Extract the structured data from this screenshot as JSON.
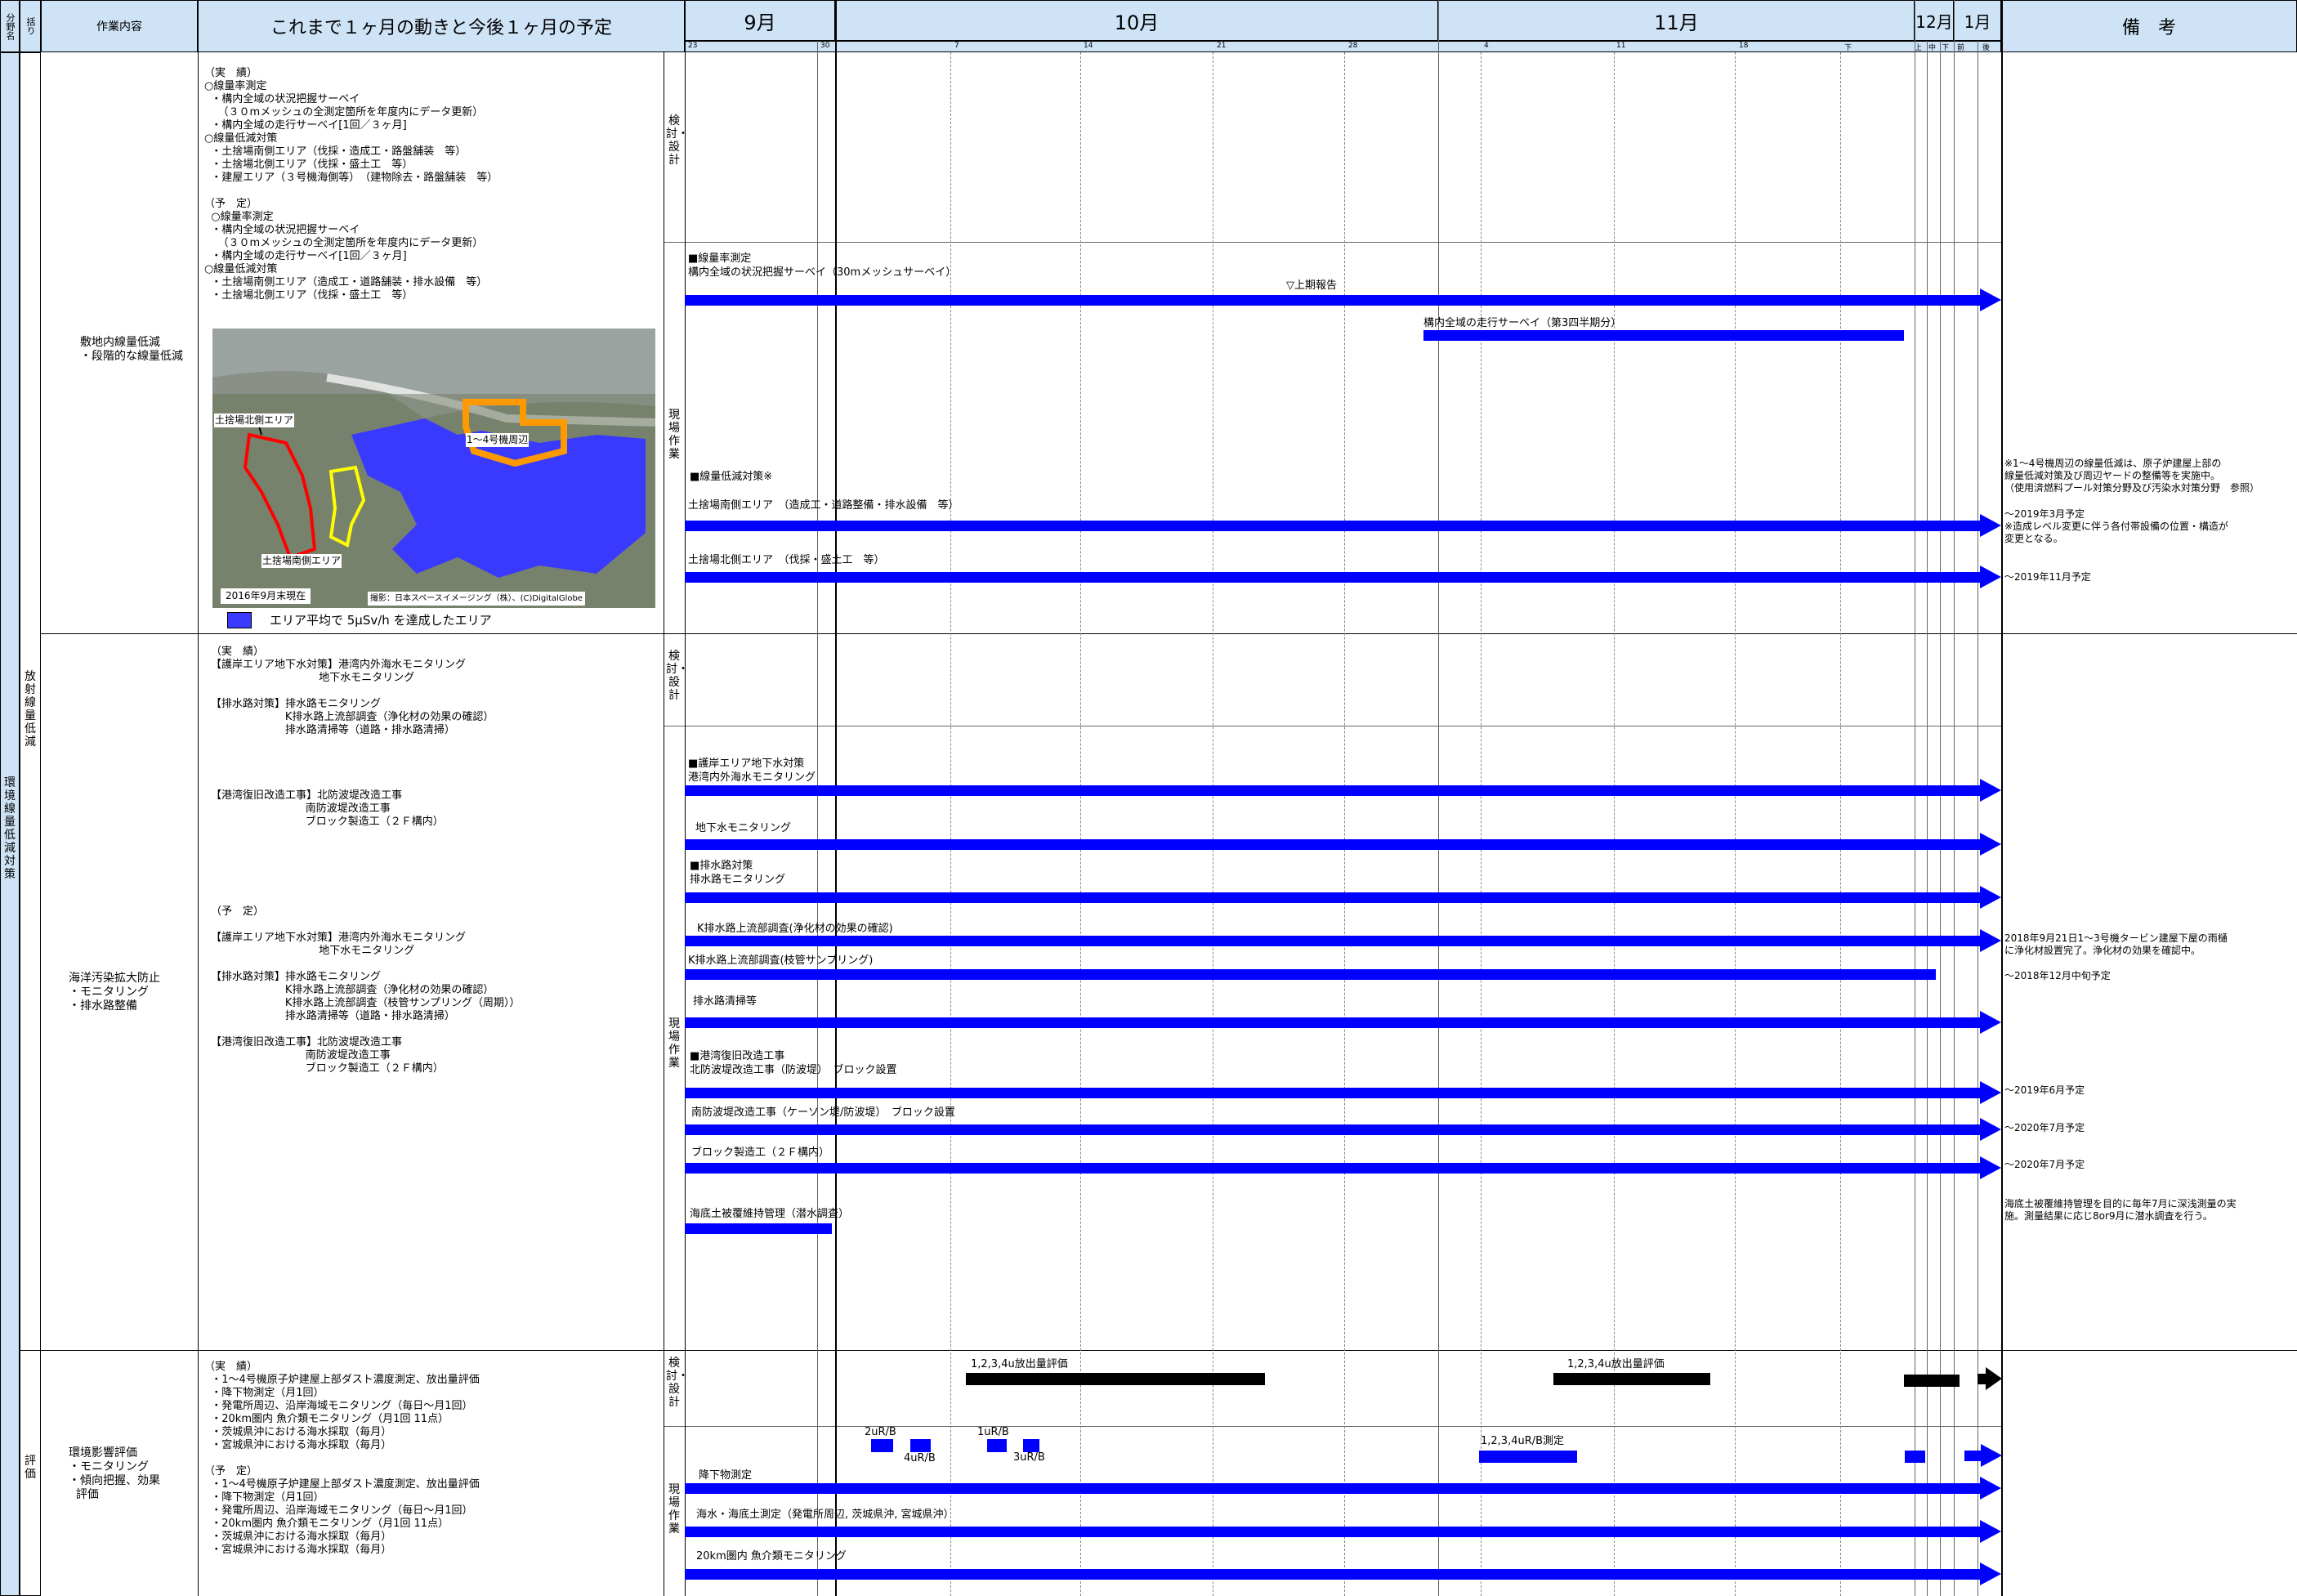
{
  "header": {
    "col_bunya": "分野名",
    "col_torikumi": "括り",
    "col_sagyo": "作業内容",
    "col_summary": "これまで１ヶ月の動きと今後１ヶ月の予定",
    "months": [
      "9月",
      "10月",
      "11月",
      "12月",
      "1月"
    ],
    "col_remarks": "備　考",
    "day_ticks": [
      "23",
      "30",
      "7",
      "14",
      "21",
      "28",
      "4",
      "11",
      "18",
      "下",
      "上",
      "中",
      "下",
      "前",
      "後"
    ]
  },
  "side": {
    "bunya": "環境線量低減対策",
    "kukuri_1": "放射線量低減",
    "kukuri_2": "評価"
  },
  "phase": {
    "kento": "検討・設計",
    "genba": "現場作業"
  },
  "rows": [
    {
      "work": "敷地内線量低減\n・段階的な線量低減",
      "summary": "（実　績）\n○線量率測定\n  ・構内全域の状況把握サーベイ\n    （３０mメッシュの全測定箇所を年度内にデータ更新）\n  ・構内全域の走行サーベイ[1回／３ヶ月]\n○線量低減対策\n  ・土捨場南側エリア（伐採・造成工・路盤舗装　等）\n  ・土捨場北側エリア（伐採・盛土工　等）\n  ・建屋エリア（３号機海側等）　（建物除去・路盤舗装　等）\n\n（予　定）\n  ○線量率測定\n  ・構内全域の状況把握サーベイ\n    （３０mメッシュの全測定箇所を年度内にデータ更新）\n  ・構内全域の走行サーベイ[1回／３ヶ月]\n○線量低減対策\n  ・土捨場南側エリア（造成工・道路舗装・排水設備　等）\n  ・土捨場北側エリア（伐採・盛土工　等）",
      "map": {
        "label_north": "土捨場北側エリア",
        "label_south": "土捨場南側エリア",
        "label_units": "1～4号機周辺",
        "date": "2016年9月末現在",
        "credit": "撮影：日本スペースイメージング（株）、(C)DigitalGlobe",
        "legend": "エリア平均で 5μSv/h を達成したエリア"
      },
      "bars": [
        {
          "label": "■線量率測定\n構内全域の状況把握サーベイ（30mメッシュサーベイ）"
        },
        {
          "label": "▽上期報告"
        },
        {
          "label": "構内全域の走行サーベイ（第3四半期分）"
        },
        {
          "label": "■線量低減対策※"
        },
        {
          "label": "土捨場南側エリア　（造成工・道路整備・排水設備　等）"
        },
        {
          "label": "土捨場北側エリア　（伐採・盛土工　等）"
        }
      ],
      "remarks": [
        "※1～4号機周辺の線量低減は、原子炉建屋上部の\n線量低減対策及び周辺ヤードの整備等を実施中。\n（使用済燃料プール対策分野及び汚染水対策分野　参照）",
        "～2019年3月予定\n※造成レベル変更に伴う各付帯設備の位置・構造が\n変更となる。",
        "～2019年11月予定"
      ]
    },
    {
      "work": "海洋汚染拡大防止\n・モニタリング\n・排水路整備",
      "summary_a": "（実　績）\n【護岸エリア地下水対策】港湾内外海水モニタリング\n                                地下水モニタリング\n\n【排水路対策】排水路モニタリング\n                      K排水路上流部調査（浄化材の効果の確認）\n                      排水路清掃等（道路・排水路清掃）\n\n\n\n\n【港湾復旧改造工事】北防波堤改造工事\n                            南防波堤改造工事\n                            ブロック製造工（２Ｆ構内）",
      "summary_b": "（予　定）\n\n【護岸エリア地下水対策】港湾内外海水モニタリング\n                                地下水モニタリング\n\n【排水路対策】排水路モニタリング\n                      K排水路上流部調査（浄化材の効果の確認）\n                      K排水路上流部調査（枝管サンプリング（周期））\n                      排水路清掃等（道路・排水路清掃）\n\n【港湾復旧改造工事】北防波堤改造工事\n                            南防波堤改造工事\n                            ブロック製造工（２Ｆ構内）",
      "bars": [
        {
          "label": "■護岸エリア地下水対策\n港湾内外海水モニタリング"
        },
        {
          "label": "地下水モニタリング"
        },
        {
          "label": "■排水路対策\n排水路モニタリング"
        },
        {
          "label": "K排水路上流部調査(浄化材の効果の確認)"
        },
        {
          "label": "K排水路上流部調査(枝管サンプリング)"
        },
        {
          "label": "排水路清掃等"
        },
        {
          "label": "■港湾復旧改造工事\n北防波堤改造工事（防波堤）　ブロック設置"
        },
        {
          "label": "南防波堤改造工事（ケーソン堤/防波堤）　ブロック設置"
        },
        {
          "label": "ブロック製造工（２Ｆ構内）"
        },
        {
          "label": "海底土被覆維持管理（潜水調査）"
        }
      ],
      "remarks": [
        "2018年9月21日1～3号機タービン建屋下屋の雨樋\nに浄化材設置完了。浄化材の効果を確認中。",
        "～2018年12月中旬予定",
        "～2019年6月予定",
        "～2020年7月予定",
        "～2020年7月予定",
        "海底土被覆維持管理を目的に毎年7月に深浅測量の実\n施。測量結果に応じ8or9月に潜水調査を行う。"
      ]
    },
    {
      "work": "環境影響評価\n・モニタリング\n・傾向把握、効果\n  評価",
      "summary": "（実　績）\n  ・1～4号機原子炉建屋上部ダスト濃度測定、放出量評価\n  ・降下物測定（月1回）\n  ・発電所周辺、沿岸海域モニタリング（毎日～月1回）\n  ・20km圏内 魚介類モニタリング（月1回 11点）\n  ・茨城県沖における海水採取（毎月）\n  ・宮城県沖における海水採取（毎月）\n\n（予　定）\n  ・1～4号機原子炉建屋上部ダスト濃度測定、放出量評価\n  ・降下物測定（月1回）\n  ・発電所周辺、沿岸海域モニタリング（毎日～月1回）\n  ・20km圏内 魚介類モニタリング（月1回 11点）\n  ・茨城県沖における海水採取（毎月）\n  ・宮城県沖における海水採取（毎月）",
      "bars": [
        {
          "label": "1,2,3,4u放出量評価"
        },
        {
          "label": "1,2,3,4u放出量評価"
        },
        {
          "label": "2uR/B"
        },
        {
          "label": "4uR/B"
        },
        {
          "label": "1uR/B"
        },
        {
          "label": "3uR/B"
        },
        {
          "label": "1,2,3,4uR/B測定"
        },
        {
          "label": "降下物測定"
        },
        {
          "label": "海水・海底土測定（発電所周辺, 茨城県沖, 宮城県沖）"
        },
        {
          "label": "20km圏内 魚介類モニタリング"
        }
      ]
    }
  ],
  "colors": {
    "header_bg": "#cfe3f7",
    "bar_blue": "#0000ff",
    "bar_black": "#000000",
    "map_blue": "#3a3aff"
  }
}
